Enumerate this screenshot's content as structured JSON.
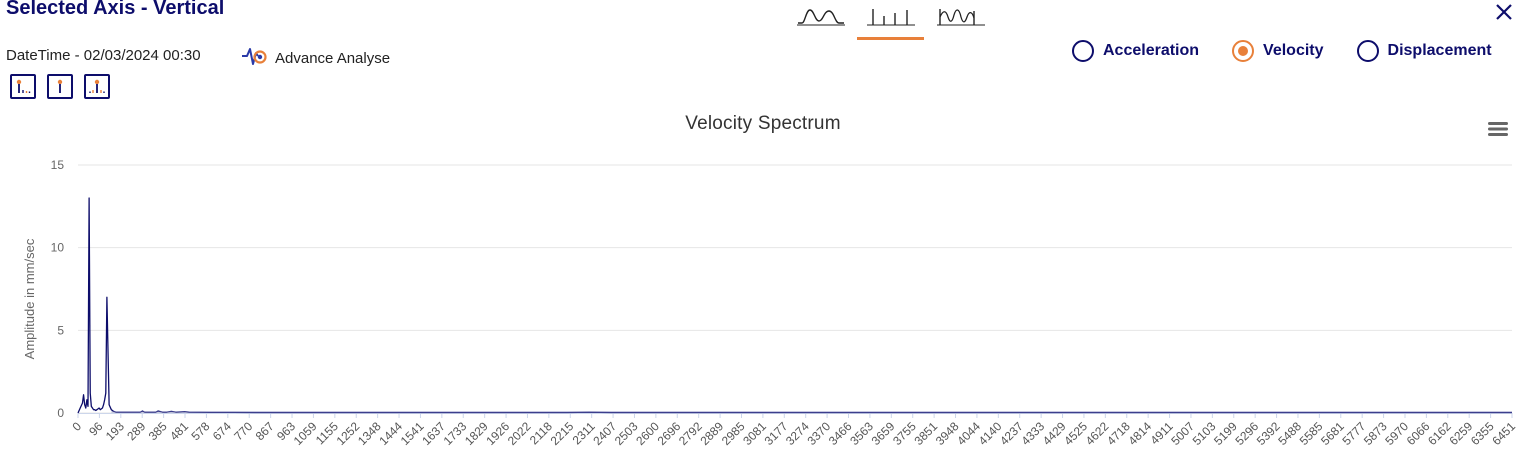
{
  "header": {
    "title": "Selected Axis - Vertical",
    "datetime": "DateTime - 02/03/2024 00:30",
    "advance_label": "Advance Analyse"
  },
  "marker_buttons": [
    {
      "icon": "harmonic-markers-icon"
    },
    {
      "icon": "single-marker-icon"
    },
    {
      "icon": "sideband-markers-icon"
    }
  ],
  "view_tabs": [
    {
      "icon": "waveform-icon",
      "active": false
    },
    {
      "icon": "spectrum-icon",
      "active": true
    },
    {
      "icon": "waveform-spectrum-icon",
      "active": false
    }
  ],
  "measurement": {
    "options": [
      "Acceleration",
      "Velocity",
      "Displacement"
    ],
    "selected": "Velocity"
  },
  "colors": {
    "accent": "#e8803a",
    "primary": "#0d0d6b",
    "series": "#0d0d6b"
  },
  "chart_data": {
    "type": "line",
    "title": "Velocity Spectrum",
    "xlabel": "",
    "ylabel": "Amplitude in mm/sec",
    "ylim": [
      0,
      15
    ],
    "yticks": [
      0,
      5,
      10,
      15
    ],
    "xlim": [
      0,
      6451
    ],
    "xticks": [
      "0",
      "96",
      "193",
      "289",
      "385",
      "481",
      "578",
      "674",
      "770",
      "867",
      "963",
      "1059",
      "1155",
      "1252",
      "1348",
      "1444",
      "1541",
      "1637",
      "1733",
      "1829",
      "1926",
      "2022",
      "2118",
      "2215",
      "2311",
      "2407",
      "2503",
      "2600",
      "2696",
      "2792",
      "2889",
      "2985",
      "3081",
      "3177",
      "3274",
      "3370",
      "3466",
      "3563",
      "3659",
      "3755",
      "3851",
      "3948",
      "4044",
      "4140",
      "4237",
      "4333",
      "4429",
      "4525",
      "4622",
      "4718",
      "4814",
      "4911",
      "5007",
      "5103",
      "5199",
      "5296",
      "5392",
      "5488",
      "5585",
      "5681",
      "5777",
      "5873",
      "5970",
      "6066",
      "6162",
      "6259",
      "6355",
      "6451"
    ],
    "grid": true,
    "series": [
      {
        "x": [
          0,
          10,
          20,
          25,
          30,
          35,
          40,
          45,
          50,
          55,
          60,
          65,
          70,
          75,
          80,
          85,
          90,
          95,
          100,
          110,
          115,
          120,
          125,
          130,
          140,
          150,
          160,
          170,
          180,
          190,
          200,
          210,
          220,
          230,
          240,
          250,
          260,
          270,
          280,
          290,
          300,
          310,
          320,
          330,
          340,
          350,
          360,
          380,
          400,
          420,
          440,
          480,
          500,
          600,
          700,
          800,
          1000,
          1500,
          2000,
          2200,
          2300,
          2400,
          2600,
          3000,
          4000,
          5000,
          6000,
          6451
        ],
        "y": [
          0,
          0.3,
          0.6,
          1.1,
          0.5,
          0.3,
          0.8,
          0.4,
          13.0,
          1.2,
          0.4,
          0.3,
          0.2,
          0.2,
          0.15,
          0.2,
          0.25,
          0.3,
          0.2,
          0.3,
          0.5,
          0.8,
          1.2,
          7.0,
          0.5,
          0.2,
          0.1,
          0.05,
          0.05,
          0.05,
          0.05,
          0.05,
          0.05,
          0.05,
          0.05,
          0.05,
          0.05,
          0.05,
          0.05,
          0.12,
          0.05,
          0.05,
          0.05,
          0.05,
          0.05,
          0.05,
          0.12,
          0.05,
          0.05,
          0.1,
          0.05,
          0.08,
          0.05,
          0.04,
          0.04,
          0.03,
          0.03,
          0.03,
          0.03,
          0.03,
          0.05,
          0.03,
          0.03,
          0.03,
          0.03,
          0.03,
          0.03,
          0.03
        ]
      }
    ]
  }
}
